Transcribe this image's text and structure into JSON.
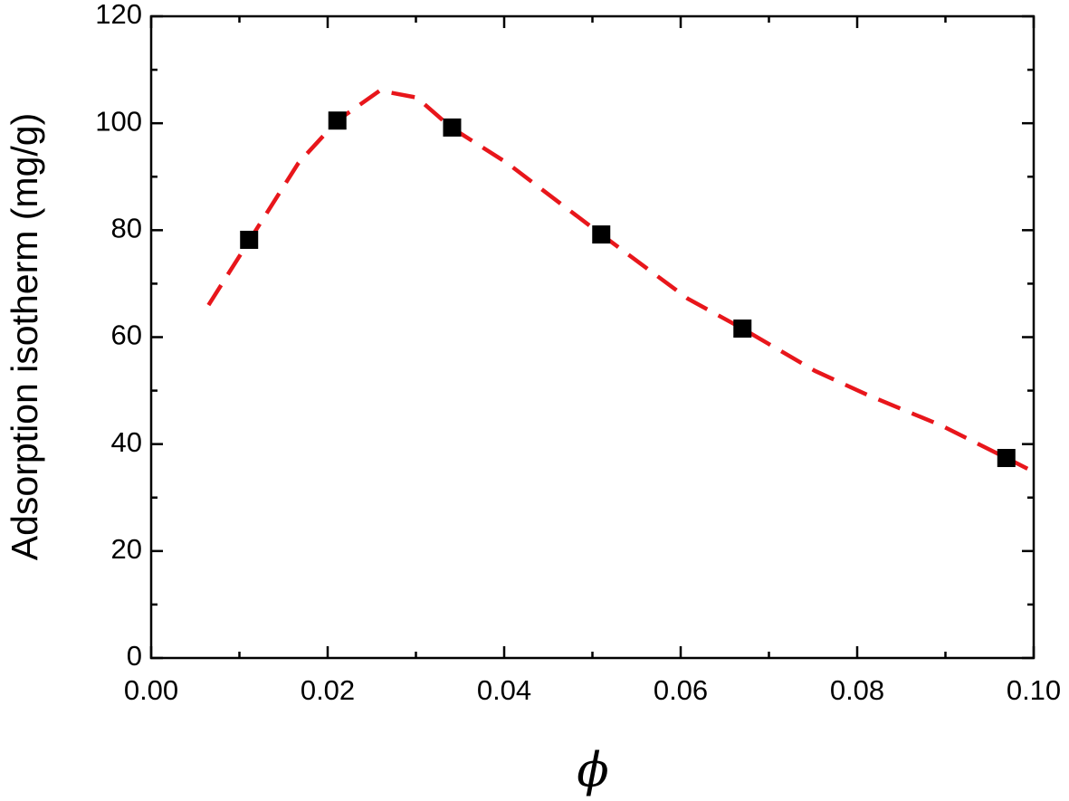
{
  "chart_data": {
    "type": "scatter",
    "x_label": "ϕ",
    "y_label": "Adsorption isotherm (mg/g)",
    "xlim": [
      0,
      0.1
    ],
    "ylim": [
      0,
      120
    ],
    "xticks": [
      {
        "value": 0,
        "label": "0.00"
      },
      {
        "value": 0.02,
        "label": "0.02"
      },
      {
        "value": 0.04,
        "label": "0.04"
      },
      {
        "value": 0.06,
        "label": "0.06"
      },
      {
        "value": 0.08,
        "label": "0.08"
      },
      {
        "value": 0.1,
        "label": "0.10"
      }
    ],
    "yticks": [
      0,
      20,
      40,
      60,
      80,
      100,
      120
    ],
    "series": [
      {
        "kind": "markers",
        "marker": "square",
        "color": "#000000",
        "x": [
          0.0111,
          0.0211,
          0.0341,
          0.051,
          0.067,
          0.0969
        ],
        "values": [
          78.2,
          100.5,
          99.2,
          79.2,
          61.6,
          37.4
        ]
      },
      {
        "kind": "line",
        "style": "dashed",
        "color": "#e8161b",
        "x": [
          0.0065,
          0.0111,
          0.0167,
          0.0211,
          0.0259,
          0.0301,
          0.034,
          0.0403,
          0.051,
          0.0608,
          0.067,
          0.0752,
          0.0813,
          0.0895,
          0.0969,
          0.0993
        ],
        "values": [
          66.0,
          78.0,
          92.6,
          100.5,
          106.1,
          104.8,
          99.2,
          92.6,
          79.2,
          67.2,
          61.6,
          53.7,
          49.1,
          43.5,
          37.4,
          35.4
        ]
      }
    ]
  }
}
